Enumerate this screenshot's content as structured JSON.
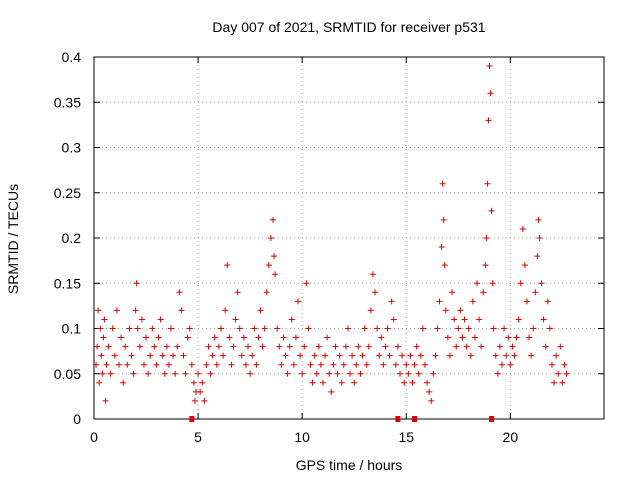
{
  "chart_data": {
    "type": "scatter",
    "title": "Day 007 of 2021, SRMTID for receiver p531",
    "xlabel": "GPS time / hours",
    "ylabel": "SRMTID / TECUs",
    "xlim": [
      0,
      24.5
    ],
    "ylim": [
      0,
      0.4
    ],
    "x_ticks": [
      0,
      5,
      10,
      15,
      20
    ],
    "x_tick_labels": [
      "0",
      "5",
      "10",
      "15",
      "20"
    ],
    "y_ticks": [
      0,
      0.05,
      0.1,
      0.15,
      0.2,
      0.25,
      0.3,
      0.35,
      0.4
    ],
    "y_tick_labels": [
      "0",
      "0.05",
      "0.1",
      "0.15",
      "0.2",
      "0.25",
      "0.3",
      "0.35",
      "0.4"
    ],
    "grid": true,
    "marker": "plus",
    "color": "#e00000",
    "series": [
      {
        "name": "SRMTID",
        "points": [
          [
            0.1,
            0.06
          ],
          [
            0.15,
            0.08
          ],
          [
            0.2,
            0.12
          ],
          [
            0.25,
            0.04
          ],
          [
            0.3,
            0.1
          ],
          [
            0.35,
            0.07
          ],
          [
            0.4,
            0.05
          ],
          [
            0.45,
            0.09
          ],
          [
            0.5,
            0.11
          ],
          [
            0.55,
            0.02
          ],
          [
            0.6,
            0.06
          ],
          [
            0.7,
            0.08
          ],
          [
            0.8,
            0.05
          ],
          [
            0.9,
            0.1
          ],
          [
            1.0,
            0.07
          ],
          [
            1.1,
            0.12
          ],
          [
            1.2,
            0.06
          ],
          [
            1.3,
            0.09
          ],
          [
            1.4,
            0.04
          ],
          [
            1.5,
            0.08
          ],
          [
            1.6,
            0.06
          ],
          [
            1.7,
            0.1
          ],
          [
            1.8,
            0.07
          ],
          [
            1.9,
            0.05
          ],
          [
            2.0,
            0.12
          ],
          [
            2.05,
            0.15
          ],
          [
            2.1,
            0.1
          ],
          [
            2.2,
            0.08
          ],
          [
            2.3,
            0.11
          ],
          [
            2.4,
            0.06
          ],
          [
            2.5,
            0.09
          ],
          [
            2.6,
            0.05
          ],
          [
            2.7,
            0.07
          ],
          [
            2.8,
            0.1
          ],
          [
            2.9,
            0.08
          ],
          [
            3.0,
            0.06
          ],
          [
            3.1,
            0.09
          ],
          [
            3.2,
            0.11
          ],
          [
            3.3,
            0.07
          ],
          [
            3.4,
            0.05
          ],
          [
            3.5,
            0.08
          ],
          [
            3.6,
            0.06
          ],
          [
            3.7,
            0.1
          ],
          [
            3.8,
            0.07
          ],
          [
            3.9,
            0.05
          ],
          [
            4.0,
            0.08
          ],
          [
            4.1,
            0.14
          ],
          [
            4.2,
            0.12
          ],
          [
            4.3,
            0.07
          ],
          [
            4.4,
            0.05
          ],
          [
            4.5,
            0.09
          ],
          [
            4.6,
            0.1
          ],
          [
            4.7,
            0.06
          ],
          [
            4.8,
            0.04
          ],
          [
            4.85,
            0.02
          ],
          [
            4.9,
            0.03
          ],
          [
            5.0,
            0.05
          ],
          [
            5.1,
            0.03
          ],
          [
            5.2,
            0.04
          ],
          [
            5.3,
            0.02
          ],
          [
            5.4,
            0.06
          ],
          [
            5.5,
            0.08
          ],
          [
            5.6,
            0.05
          ],
          [
            5.7,
            0.07
          ],
          [
            5.8,
            0.09
          ],
          [
            5.9,
            0.06
          ],
          [
            6.0,
            0.08
          ],
          [
            6.1,
            0.1
          ],
          [
            6.2,
            0.07
          ],
          [
            6.3,
            0.12
          ],
          [
            6.4,
            0.17
          ],
          [
            6.5,
            0.09
          ],
          [
            6.6,
            0.06
          ],
          [
            6.7,
            0.08
          ],
          [
            6.8,
            0.11
          ],
          [
            6.9,
            0.14
          ],
          [
            7.0,
            0.1
          ],
          [
            7.1,
            0.07
          ],
          [
            7.2,
            0.09
          ],
          [
            7.3,
            0.06
          ],
          [
            7.4,
            0.08
          ],
          [
            7.5,
            0.05
          ],
          [
            7.6,
            0.07
          ],
          [
            7.7,
            0.1
          ],
          [
            7.8,
            0.06
          ],
          [
            7.9,
            0.09
          ],
          [
            8.0,
            0.12
          ],
          [
            8.1,
            0.08
          ],
          [
            8.2,
            0.1
          ],
          [
            8.3,
            0.14
          ],
          [
            8.4,
            0.17
          ],
          [
            8.5,
            0.2
          ],
          [
            8.6,
            0.22
          ],
          [
            8.65,
            0.18
          ],
          [
            8.7,
            0.16
          ],
          [
            8.8,
            0.1
          ],
          [
            8.9,
            0.08
          ],
          [
            9.0,
            0.06
          ],
          [
            9.1,
            0.09
          ],
          [
            9.2,
            0.07
          ],
          [
            9.3,
            0.05
          ],
          [
            9.4,
            0.08
          ],
          [
            9.5,
            0.11
          ],
          [
            9.6,
            0.06
          ],
          [
            9.7,
            0.09
          ],
          [
            9.8,
            0.13
          ],
          [
            9.9,
            0.07
          ],
          [
            10.0,
            0.05
          ],
          [
            10.1,
            0.08
          ],
          [
            10.2,
            0.15
          ],
          [
            10.3,
            0.1
          ],
          [
            10.4,
            0.06
          ],
          [
            10.5,
            0.04
          ],
          [
            10.6,
            0.07
          ],
          [
            10.7,
            0.05
          ],
          [
            10.8,
            0.08
          ],
          [
            10.9,
            0.06
          ],
          [
            11.0,
            0.04
          ],
          [
            11.1,
            0.07
          ],
          [
            11.2,
            0.09
          ],
          [
            11.3,
            0.05
          ],
          [
            11.4,
            0.03
          ],
          [
            11.5,
            0.06
          ],
          [
            11.6,
            0.08
          ],
          [
            11.7,
            0.05
          ],
          [
            11.8,
            0.07
          ],
          [
            11.9,
            0.04
          ],
          [
            12.0,
            0.06
          ],
          [
            12.1,
            0.08
          ],
          [
            12.2,
            0.1
          ],
          [
            12.3,
            0.05
          ],
          [
            12.4,
            0.07
          ],
          [
            12.5,
            0.04
          ],
          [
            12.6,
            0.06
          ],
          [
            12.7,
            0.08
          ],
          [
            12.8,
            0.05
          ],
          [
            12.9,
            0.07
          ],
          [
            13.0,
            0.1
          ],
          [
            13.1,
            0.06
          ],
          [
            13.2,
            0.08
          ],
          [
            13.3,
            0.12
          ],
          [
            13.4,
            0.16
          ],
          [
            13.5,
            0.14
          ],
          [
            13.6,
            0.1
          ],
          [
            13.7,
            0.07
          ],
          [
            13.8,
            0.09
          ],
          [
            13.9,
            0.06
          ],
          [
            14.0,
            0.08
          ],
          [
            14.1,
            0.1
          ],
          [
            14.2,
            0.07
          ],
          [
            14.3,
            0.13
          ],
          [
            14.4,
            0.11
          ],
          [
            14.5,
            0.06
          ],
          [
            14.6,
            0.08
          ],
          [
            14.7,
            0.05
          ],
          [
            14.8,
            0.07
          ],
          [
            14.9,
            0.04
          ],
          [
            15.0,
            0.06
          ],
          [
            15.1,
            0.05
          ],
          [
            15.2,
            0.07
          ],
          [
            15.3,
            0.04
          ],
          [
            15.4,
            0.06
          ],
          [
            15.5,
            0.08
          ],
          [
            15.6,
            0.05
          ],
          [
            15.7,
            0.07
          ],
          [
            15.8,
            0.1
          ],
          [
            15.9,
            0.06
          ],
          [
            16.0,
            0.04
          ],
          [
            16.1,
            0.03
          ],
          [
            16.2,
            0.02
          ],
          [
            16.3,
            0.05
          ],
          [
            16.4,
            0.07
          ],
          [
            16.5,
            0.1
          ],
          [
            16.6,
            0.13
          ],
          [
            16.7,
            0.19
          ],
          [
            16.75,
            0.26
          ],
          [
            16.8,
            0.22
          ],
          [
            16.85,
            0.17
          ],
          [
            16.9,
            0.12
          ],
          [
            17.0,
            0.09
          ],
          [
            17.1,
            0.07
          ],
          [
            17.2,
            0.14
          ],
          [
            17.3,
            0.11
          ],
          [
            17.4,
            0.08
          ],
          [
            17.5,
            0.1
          ],
          [
            17.6,
            0.12
          ],
          [
            17.7,
            0.09
          ],
          [
            17.8,
            0.11
          ],
          [
            17.9,
            0.08
          ],
          [
            18.0,
            0.1
          ],
          [
            18.1,
            0.07
          ],
          [
            18.2,
            0.13
          ],
          [
            18.3,
            0.09
          ],
          [
            18.4,
            0.15
          ],
          [
            18.5,
            0.11
          ],
          [
            18.6,
            0.08
          ],
          [
            18.7,
            0.14
          ],
          [
            18.8,
            0.17
          ],
          [
            18.85,
            0.2
          ],
          [
            18.9,
            0.26
          ],
          [
            18.95,
            0.33
          ],
          [
            19.0,
            0.39
          ],
          [
            19.05,
            0.36
          ],
          [
            19.1,
            0.23
          ],
          [
            19.15,
            0.15
          ],
          [
            19.2,
            0.1
          ],
          [
            19.3,
            0.07
          ],
          [
            19.4,
            0.05
          ],
          [
            19.5,
            0.08
          ],
          [
            19.6,
            0.06
          ],
          [
            19.7,
            0.1
          ],
          [
            19.8,
            0.07
          ],
          [
            19.9,
            0.09
          ],
          [
            20.0,
            0.06
          ],
          [
            20.1,
            0.08
          ],
          [
            20.2,
            0.07
          ],
          [
            20.3,
            0.09
          ],
          [
            20.4,
            0.11
          ],
          [
            20.5,
            0.15
          ],
          [
            20.6,
            0.21
          ],
          [
            20.7,
            0.17
          ],
          [
            20.8,
            0.13
          ],
          [
            20.9,
            0.09
          ],
          [
            21.0,
            0.07
          ],
          [
            21.1,
            0.1
          ],
          [
            21.2,
            0.14
          ],
          [
            21.3,
            0.18
          ],
          [
            21.35,
            0.22
          ],
          [
            21.4,
            0.2
          ],
          [
            21.5,
            0.15
          ],
          [
            21.6,
            0.11
          ],
          [
            21.7,
            0.08
          ],
          [
            21.8,
            0.13
          ],
          [
            21.9,
            0.1
          ],
          [
            22.0,
            0.06
          ],
          [
            22.1,
            0.04
          ],
          [
            22.2,
            0.07
          ],
          [
            22.3,
            0.05
          ],
          [
            22.4,
            0.08
          ],
          [
            22.5,
            0.04
          ],
          [
            22.6,
            0.06
          ],
          [
            22.7,
            0.05
          ]
        ]
      }
    ],
    "gap_markers_x": [
      4.7,
      14.6,
      15.4,
      19.1
    ]
  }
}
